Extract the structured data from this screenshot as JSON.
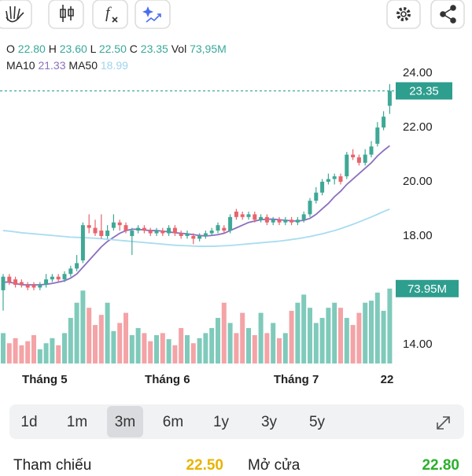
{
  "legend": {
    "o_label": "O",
    "o": "22.80",
    "h_label": "H",
    "h": "23.60",
    "l_label": "L",
    "l": "22.50",
    "c_label": "C",
    "c": "23.35",
    "vol_label": "Vol",
    "vol": "73,95M",
    "ma10_label": "MA10",
    "ma10": "21.33",
    "ma50_label": "MA50",
    "ma50": "18.99"
  },
  "chart_data": {
    "type": "candlestick",
    "categories": [
      null,
      null,
      null,
      null,
      null,
      null,
      "Tháng 5",
      null,
      null,
      null,
      null,
      null,
      null,
      null,
      null,
      null,
      null,
      null,
      null,
      null,
      null,
      null,
      null,
      null,
      null,
      null,
      "Tháng 6",
      null,
      null,
      null,
      null,
      null,
      null,
      null,
      null,
      null,
      null,
      null,
      null,
      null,
      null,
      null,
      null,
      null,
      null,
      null,
      null,
      "Tháng 7",
      null,
      null,
      null,
      null,
      null,
      null,
      null,
      null,
      null,
      null,
      null,
      null,
      null,
      null,
      null,
      "22"
    ],
    "open": [
      16.0,
      16.5,
      16.4,
      16.3,
      16.2,
      16.2,
      16.1,
      16.2,
      16.4,
      16.5,
      16.4,
      16.6,
      16.8,
      17.1,
      18.4,
      18.3,
      18.2,
      18.0,
      18.3,
      18.5,
      18.4,
      18.0,
      18.2,
      18.3,
      18.2,
      18.1,
      18.2,
      18.1,
      18.3,
      18.1,
      18.0,
      18.0,
      17.9,
      18.0,
      18.1,
      18.2,
      18.3,
      18.2,
      18.9,
      18.8,
      18.7,
      18.8,
      18.6,
      18.7,
      18.5,
      18.6,
      18.5,
      18.6,
      18.5,
      18.6,
      18.8,
      19.3,
      19.6,
      20.0,
      20.1,
      20.2,
      20.2,
      21.0,
      20.9,
      20.7,
      21.0,
      21.4,
      22.0,
      22.8
    ],
    "high": [
      16.6,
      16.6,
      16.5,
      16.4,
      16.3,
      16.3,
      16.3,
      16.6,
      16.6,
      16.6,
      16.7,
      16.9,
      17.3,
      18.5,
      18.8,
      18.6,
      18.8,
      18.4,
      18.8,
      18.6,
      18.5,
      18.3,
      18.4,
      18.4,
      18.3,
      18.3,
      18.3,
      18.4,
      18.4,
      18.2,
      18.2,
      18.1,
      18.1,
      18.2,
      18.3,
      18.5,
      18.4,
      18.8,
      19.0,
      18.9,
      18.9,
      18.9,
      18.8,
      18.8,
      18.7,
      18.7,
      18.7,
      18.7,
      18.7,
      18.9,
      19.4,
      19.8,
      20.1,
      20.3,
      20.3,
      20.3,
      21.1,
      21.2,
      21.0,
      21.2,
      21.5,
      22.2,
      22.6,
      23.6
    ],
    "low": [
      15.25,
      16.2,
      16.1,
      16.1,
      16.0,
      16.0,
      16.0,
      16.1,
      16.3,
      16.3,
      16.3,
      16.5,
      16.7,
      17.0,
      18.1,
      18.0,
      17.9,
      17.9,
      18.2,
      18.2,
      18.1,
      17.3,
      18.1,
      18.1,
      18.0,
      18.0,
      18.0,
      18.0,
      18.0,
      17.9,
      17.9,
      17.7,
      17.8,
      17.9,
      18.0,
      18.1,
      18.1,
      18.1,
      18.6,
      18.6,
      18.6,
      18.5,
      18.5,
      18.4,
      18.4,
      18.4,
      18.4,
      18.4,
      18.4,
      18.5,
      18.7,
      19.2,
      19.5,
      19.9,
      19.9,
      19.9,
      20.1,
      20.8,
      20.6,
      20.6,
      20.9,
      21.3,
      21.9,
      22.5
    ],
    "close": [
      16.5,
      16.3,
      16.2,
      16.2,
      16.1,
      16.1,
      16.2,
      16.4,
      16.5,
      16.4,
      16.6,
      16.8,
      17.0,
      18.4,
      18.3,
      18.1,
      18.0,
      18.2,
      18.5,
      18.4,
      18.2,
      18.2,
      18.3,
      18.2,
      18.1,
      18.2,
      18.1,
      18.3,
      18.1,
      18.0,
      18.1,
      17.9,
      18.0,
      18.1,
      18.2,
      18.4,
      18.2,
      18.7,
      18.7,
      18.7,
      18.8,
      18.6,
      18.7,
      18.5,
      18.6,
      18.5,
      18.6,
      18.5,
      18.6,
      18.8,
      19.3,
      19.6,
      20.0,
      20.1,
      20.2,
      20.0,
      21.0,
      20.9,
      20.7,
      21.0,
      21.3,
      22.0,
      22.4,
      23.35
    ],
    "up_color": "#3fa896",
    "down_color": "#e8646c",
    "last_label": "23.35",
    "ylim": [
      13.3,
      24.38
    ],
    "yticks": [
      {
        "value": 24,
        "label": "24.00"
      },
      {
        "value": 22,
        "label": "22.00"
      },
      {
        "value": 20,
        "label": "20.00"
      },
      {
        "value": 18,
        "label": "18.00"
      },
      {
        "value": 14,
        "label": "14.00"
      }
    ],
    "series": [
      {
        "name": "MA10",
        "color": "#8a6fc0",
        "values": [
          16.3,
          16.3,
          16.25,
          16.2,
          16.2,
          16.2,
          16.2,
          16.22,
          16.25,
          16.3,
          16.35,
          16.45,
          16.6,
          16.85,
          17.1,
          17.35,
          17.6,
          17.8,
          17.95,
          18.1,
          18.2,
          18.25,
          18.25,
          18.22,
          18.2,
          18.2,
          18.18,
          18.15,
          18.12,
          18.1,
          18.08,
          18.05,
          18.02,
          18.0,
          18.02,
          18.05,
          18.1,
          18.2,
          18.3,
          18.4,
          18.5,
          18.55,
          18.6,
          18.62,
          18.62,
          18.6,
          18.58,
          18.56,
          18.55,
          18.58,
          18.65,
          18.8,
          19.0,
          19.2,
          19.45,
          19.65,
          19.9,
          20.1,
          20.3,
          20.5,
          20.7,
          20.95,
          21.15,
          21.33
        ]
      },
      {
        "name": "MA50",
        "color": "#a8dcf0",
        "values": [
          18.2,
          18.18,
          18.15,
          18.12,
          18.1,
          18.08,
          18.06,
          18.04,
          18.02,
          18.0,
          17.98,
          17.96,
          17.95,
          17.94,
          17.93,
          17.92,
          17.9,
          17.88,
          17.86,
          17.84,
          17.82,
          17.8,
          17.78,
          17.76,
          17.74,
          17.72,
          17.7,
          17.68,
          17.66,
          17.65,
          17.64,
          17.63,
          17.62,
          17.62,
          17.62,
          17.63,
          17.64,
          17.65,
          17.67,
          17.69,
          17.71,
          17.73,
          17.75,
          17.77,
          17.79,
          17.81,
          17.84,
          17.87,
          17.9,
          17.94,
          17.98,
          18.03,
          18.08,
          18.14,
          18.2,
          18.27,
          18.35,
          18.43,
          18.52,
          18.61,
          18.7,
          18.8,
          18.9,
          18.99
        ]
      }
    ],
    "volume": {
      "label": "73.95M",
      "ylim": [
        0,
        80
      ],
      "up_color": "#7fcabb",
      "down_color": "#f4a3a6",
      "values": [
        30,
        20,
        25,
        18,
        22,
        28,
        14,
        20,
        25,
        18,
        30,
        45,
        60,
        72,
        55,
        38,
        48,
        60,
        32,
        40,
        50,
        28,
        35,
        30,
        22,
        28,
        30,
        24,
        18,
        35,
        28,
        20,
        25,
        30,
        35,
        45,
        60,
        40,
        30,
        50,
        35,
        28,
        50,
        30,
        40,
        25,
        30,
        52,
        60,
        68,
        55,
        40,
        45,
        55,
        60,
        55,
        45,
        38,
        50,
        60,
        62,
        70,
        52,
        73.95
      ]
    }
  },
  "ranges": [
    "1d",
    "1m",
    "3m",
    "6m",
    "1y",
    "3y",
    "5y"
  ],
  "selected_range": "3m",
  "footer": {
    "ref_label": "Tham chiếu",
    "ref_value": "22.50",
    "open_label": "Mở cửa",
    "open_value": "22.80"
  }
}
